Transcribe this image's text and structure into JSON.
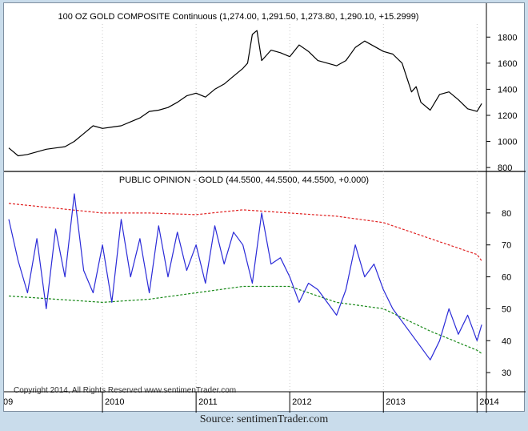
{
  "caption": "Source: sentimenTrader.com",
  "copyright": "Copyright 2014, All Rights Reserved  www.sentimenTrader.com",
  "colors": {
    "background": "#c9dceb",
    "gold_line": "#000000",
    "opinion_line": "#2b2bd8",
    "upper_band": "#e02020",
    "lower_band": "#1a8a1a",
    "grid": "#bbbbbb"
  },
  "chart_data": [
    {
      "type": "line",
      "title": "100 OZ GOLD COMPOSITE Continuous (1,274.00, 1,291.50, 1,273.80, 1,290.10, +15.2999)",
      "x_ticks": [
        "09",
        "2010",
        "2011",
        "2012",
        "2013",
        "2014"
      ],
      "y_ticks": [
        800,
        1000,
        1200,
        1400,
        1600,
        1800
      ],
      "ylim": [
        770,
        1900
      ],
      "xlim": [
        2009.0,
        2014.1
      ],
      "grid": "vertical dotted at year boundaries",
      "series": [
        {
          "x": [
            2009.0,
            2009.1,
            2009.2,
            2009.3,
            2009.4,
            2009.5,
            2009.6,
            2009.7,
            2009.8,
            2009.9,
            2010.0,
            2010.1,
            2010.2,
            2010.3,
            2010.4,
            2010.5,
            2010.6,
            2010.7,
            2010.8,
            2010.9,
            2011.0,
            2011.1,
            2011.2,
            2011.3,
            2011.4,
            2011.5,
            2011.55,
            2011.6,
            2011.65,
            2011.7,
            2011.8,
            2011.9,
            2012.0,
            2012.1,
            2012.2,
            2012.3,
            2012.4,
            2012.5,
            2012.6,
            2012.7,
            2012.8,
            2012.9,
            2013.0,
            2013.1,
            2013.2,
            2013.3,
            2013.35,
            2013.4,
            2013.5,
            2013.6,
            2013.7,
            2013.8,
            2013.9,
            2014.0,
            2014.05
          ],
          "values": [
            950,
            890,
            900,
            920,
            940,
            950,
            960,
            1000,
            1060,
            1120,
            1100,
            1110,
            1120,
            1150,
            1180,
            1230,
            1240,
            1260,
            1300,
            1350,
            1370,
            1340,
            1400,
            1440,
            1500,
            1560,
            1600,
            1820,
            1850,
            1620,
            1700,
            1680,
            1650,
            1740,
            1690,
            1620,
            1600,
            1580,
            1620,
            1720,
            1770,
            1730,
            1690,
            1670,
            1600,
            1380,
            1420,
            1300,
            1240,
            1360,
            1380,
            1320,
            1250,
            1230,
            1290
          ]
        }
      ]
    },
    {
      "type": "line",
      "title": "PUBLIC OPINION - GOLD (44.5500, 44.5500, 44.5500, +0.000)",
      "x_ticks": [
        "09",
        "2010",
        "2011",
        "2012",
        "2013",
        "2014"
      ],
      "y_ticks": [
        30,
        40,
        50,
        60,
        70,
        80
      ],
      "ylim": [
        24,
        88
      ],
      "xlim": [
        2009.0,
        2014.1
      ],
      "series": [
        {
          "name": "Public Opinion",
          "x": [
            2009.0,
            2009.1,
            2009.2,
            2009.3,
            2009.4,
            2009.5,
            2009.6,
            2009.7,
            2009.8,
            2009.9,
            2010.0,
            2010.1,
            2010.2,
            2010.3,
            2010.4,
            2010.5,
            2010.6,
            2010.7,
            2010.8,
            2010.9,
            2011.0,
            2011.1,
            2011.2,
            2011.3,
            2011.4,
            2011.5,
            2011.6,
            2011.7,
            2011.8,
            2011.9,
            2012.0,
            2012.1,
            2012.2,
            2012.3,
            2012.4,
            2012.5,
            2012.6,
            2012.7,
            2012.8,
            2012.9,
            2013.0,
            2013.1,
            2013.2,
            2013.3,
            2013.4,
            2013.5,
            2013.6,
            2013.7,
            2013.8,
            2013.9,
            2014.0,
            2014.05
          ],
          "values": [
            78,
            65,
            55,
            72,
            50,
            75,
            60,
            86,
            62,
            55,
            70,
            52,
            78,
            60,
            72,
            55,
            76,
            60,
            74,
            62,
            70,
            58,
            76,
            64,
            74,
            70,
            58,
            80,
            64,
            66,
            60,
            52,
            58,
            56,
            52,
            48,
            56,
            70,
            60,
            64,
            56,
            50,
            46,
            42,
            38,
            34,
            40,
            50,
            42,
            48,
            40,
            45
          ]
        },
        {
          "name": "Upper band",
          "x": [
            2009.0,
            2009.5,
            2010.0,
            2010.5,
            2011.0,
            2011.5,
            2012.0,
            2012.5,
            2013.0,
            2013.5,
            2014.0,
            2014.05
          ],
          "values": [
            83,
            81.5,
            80,
            80,
            79.5,
            81,
            80,
            79,
            77,
            72,
            67,
            65
          ]
        },
        {
          "name": "Lower band",
          "x": [
            2009.0,
            2009.5,
            2010.0,
            2010.5,
            2011.0,
            2011.5,
            2012.0,
            2012.5,
            2013.0,
            2013.5,
            2014.0,
            2014.05
          ],
          "values": [
            54,
            53,
            52,
            53,
            55,
            57,
            57,
            52,
            50,
            43,
            37,
            36
          ]
        }
      ]
    }
  ]
}
